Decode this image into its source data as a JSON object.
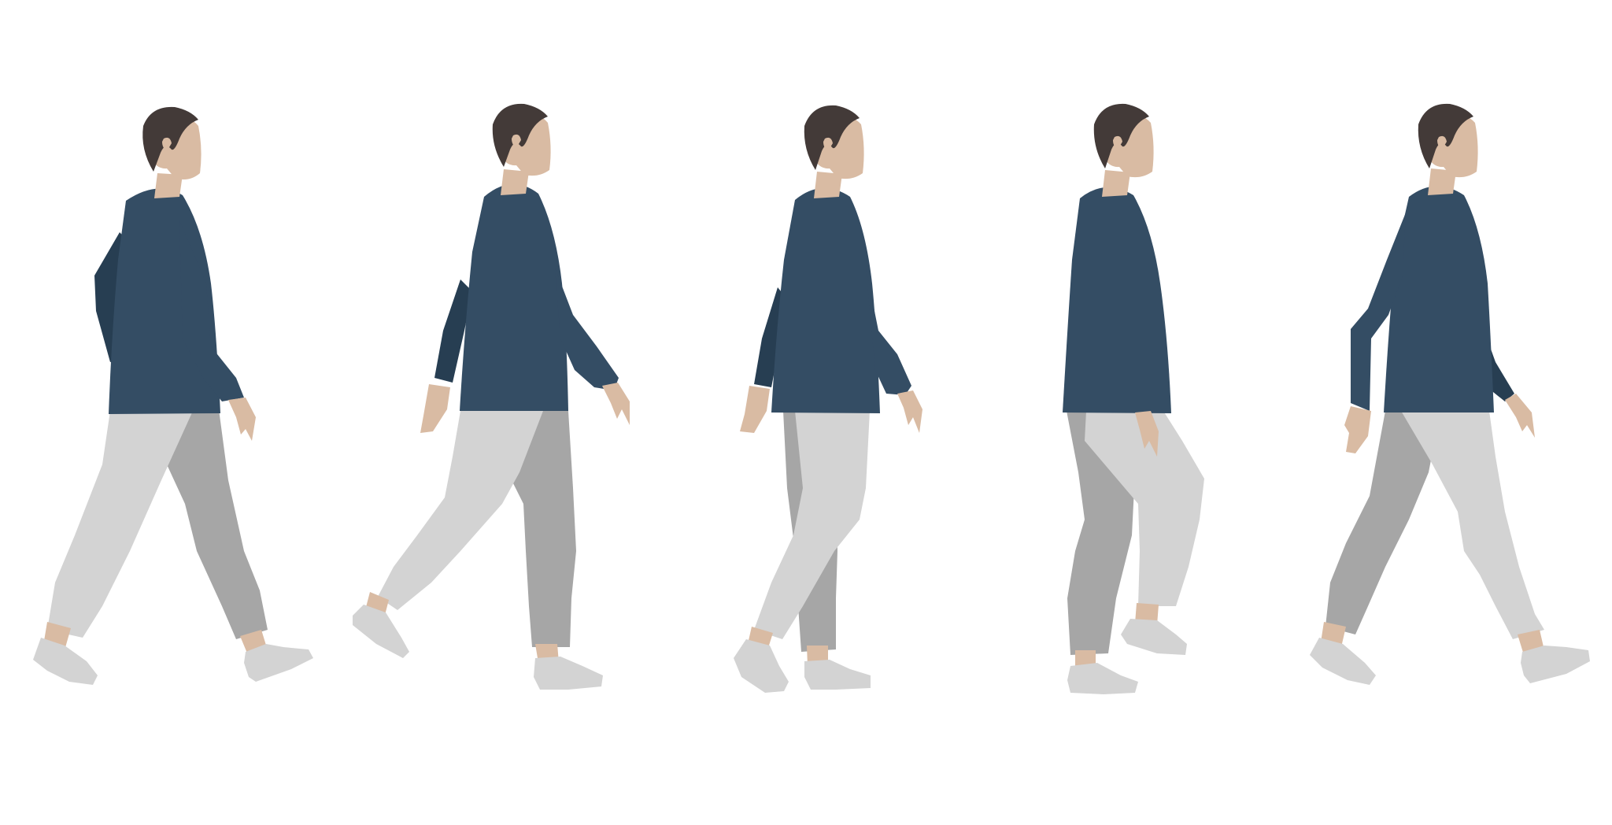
{
  "scene": {
    "background": "#ffffff",
    "figure_count": 5,
    "palette": {
      "hair": "#433a38",
      "skin": "#d9bba3",
      "skin_shadow": "#c9a88c",
      "shirt": "#344d64",
      "shirt_back": "#273e52",
      "pants_front": "#d3d3d3",
      "pants_back": "#a6a6a6",
      "shoe": "#d3d3d3",
      "shoe_dark": "#c4c4c4"
    },
    "figures": [
      {
        "name": "walk-frame-1",
        "pose": "walk-cycle-contact-wide"
      },
      {
        "name": "walk-frame-2",
        "pose": "walk-cycle-stride-forward"
      },
      {
        "name": "walk-frame-3",
        "pose": "walk-cycle-passing"
      },
      {
        "name": "walk-frame-4",
        "pose": "walk-cycle-lift"
      },
      {
        "name": "walk-frame-5",
        "pose": "walk-cycle-contact-wide"
      }
    ]
  }
}
